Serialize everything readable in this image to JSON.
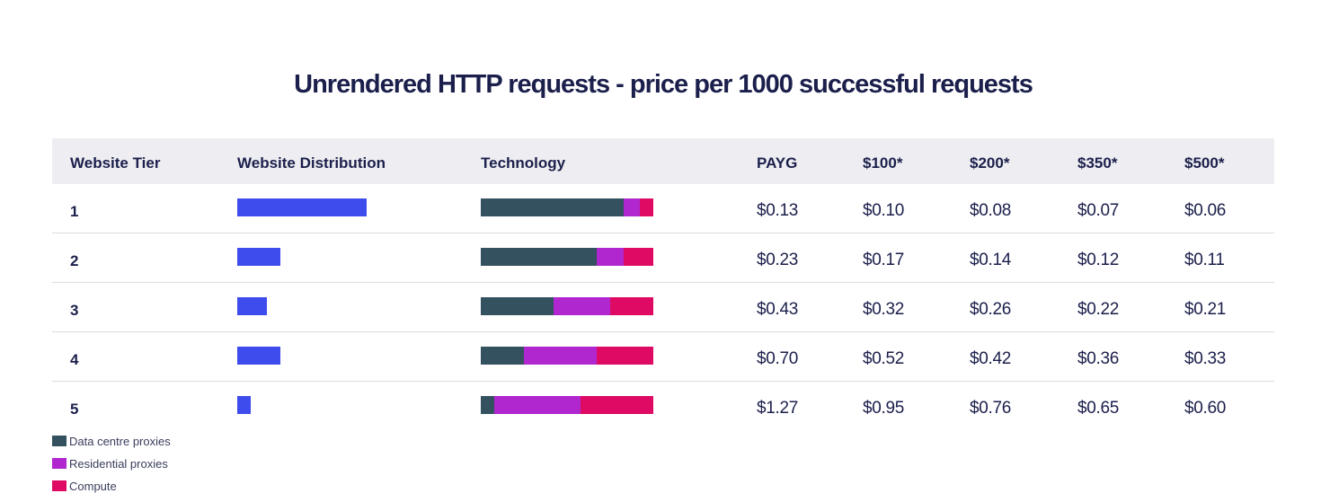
{
  "title": "Unrendered HTTP requests - price per 1000 successful requests",
  "columns": [
    "Website Tier",
    "Website Distribution",
    "Technology",
    "PAYG",
    "$100*",
    "$200*",
    "$350*",
    "$500*"
  ],
  "colors": {
    "distribution": "#3f4ced",
    "data_centre": "#34515f",
    "residential": "#b026cf",
    "compute": "#de0a63"
  },
  "rows": [
    {
      "tier": "1",
      "distribution": 0.75,
      "technology": [
        0.83,
        0.09,
        0.08
      ],
      "prices": [
        "$0.13",
        "$0.10",
        "$0.08",
        "$0.07",
        "$0.06"
      ]
    },
    {
      "tier": "2",
      "distribution": 0.25,
      "technology": [
        0.67,
        0.16,
        0.17
      ],
      "prices": [
        "$0.23",
        "$0.17",
        "$0.14",
        "$0.12",
        "$0.11"
      ]
    },
    {
      "tier": "3",
      "distribution": 0.17,
      "technology": [
        0.42,
        0.33,
        0.25
      ],
      "prices": [
        "$0.43",
        "$0.32",
        "$0.26",
        "$0.22",
        "$0.21"
      ]
    },
    {
      "tier": "4",
      "distribution": 0.25,
      "technology": [
        0.25,
        0.42,
        0.33
      ],
      "prices": [
        "$0.70",
        "$0.52",
        "$0.42",
        "$0.36",
        "$0.33"
      ]
    },
    {
      "tier": "5",
      "distribution": 0.08,
      "technology": [
        0.08,
        0.5,
        0.42
      ],
      "prices": [
        "$1.27",
        "$0.95",
        "$0.76",
        "$0.65",
        "$0.60"
      ]
    }
  ],
  "legend": [
    {
      "label": "Data centre proxies",
      "color": "#34515f"
    },
    {
      "label": "Residential proxies",
      "color": "#b026cf"
    },
    {
      "label": "Compute",
      "color": "#de0a63"
    }
  ]
}
